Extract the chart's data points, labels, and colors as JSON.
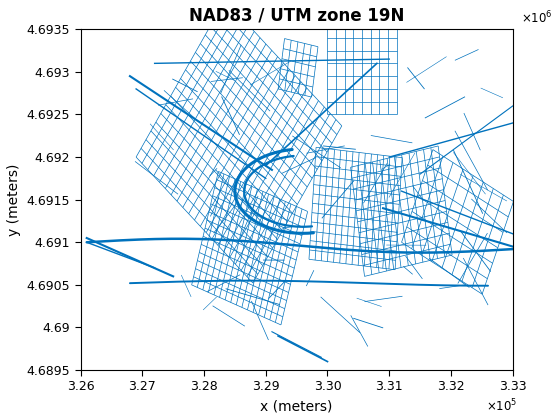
{
  "title": "NAD83 / UTM zone 19N",
  "xlabel": "x (meters)",
  "ylabel": "y (meters)",
  "xlim": [
    326000,
    333000
  ],
  "ylim": [
    4689500,
    4693500
  ],
  "line_color": "#0072BD",
  "bg_color": "#ffffff",
  "title_fontsize": 12,
  "label_fontsize": 10,
  "tick_fontsize": 9,
  "seed": 42
}
